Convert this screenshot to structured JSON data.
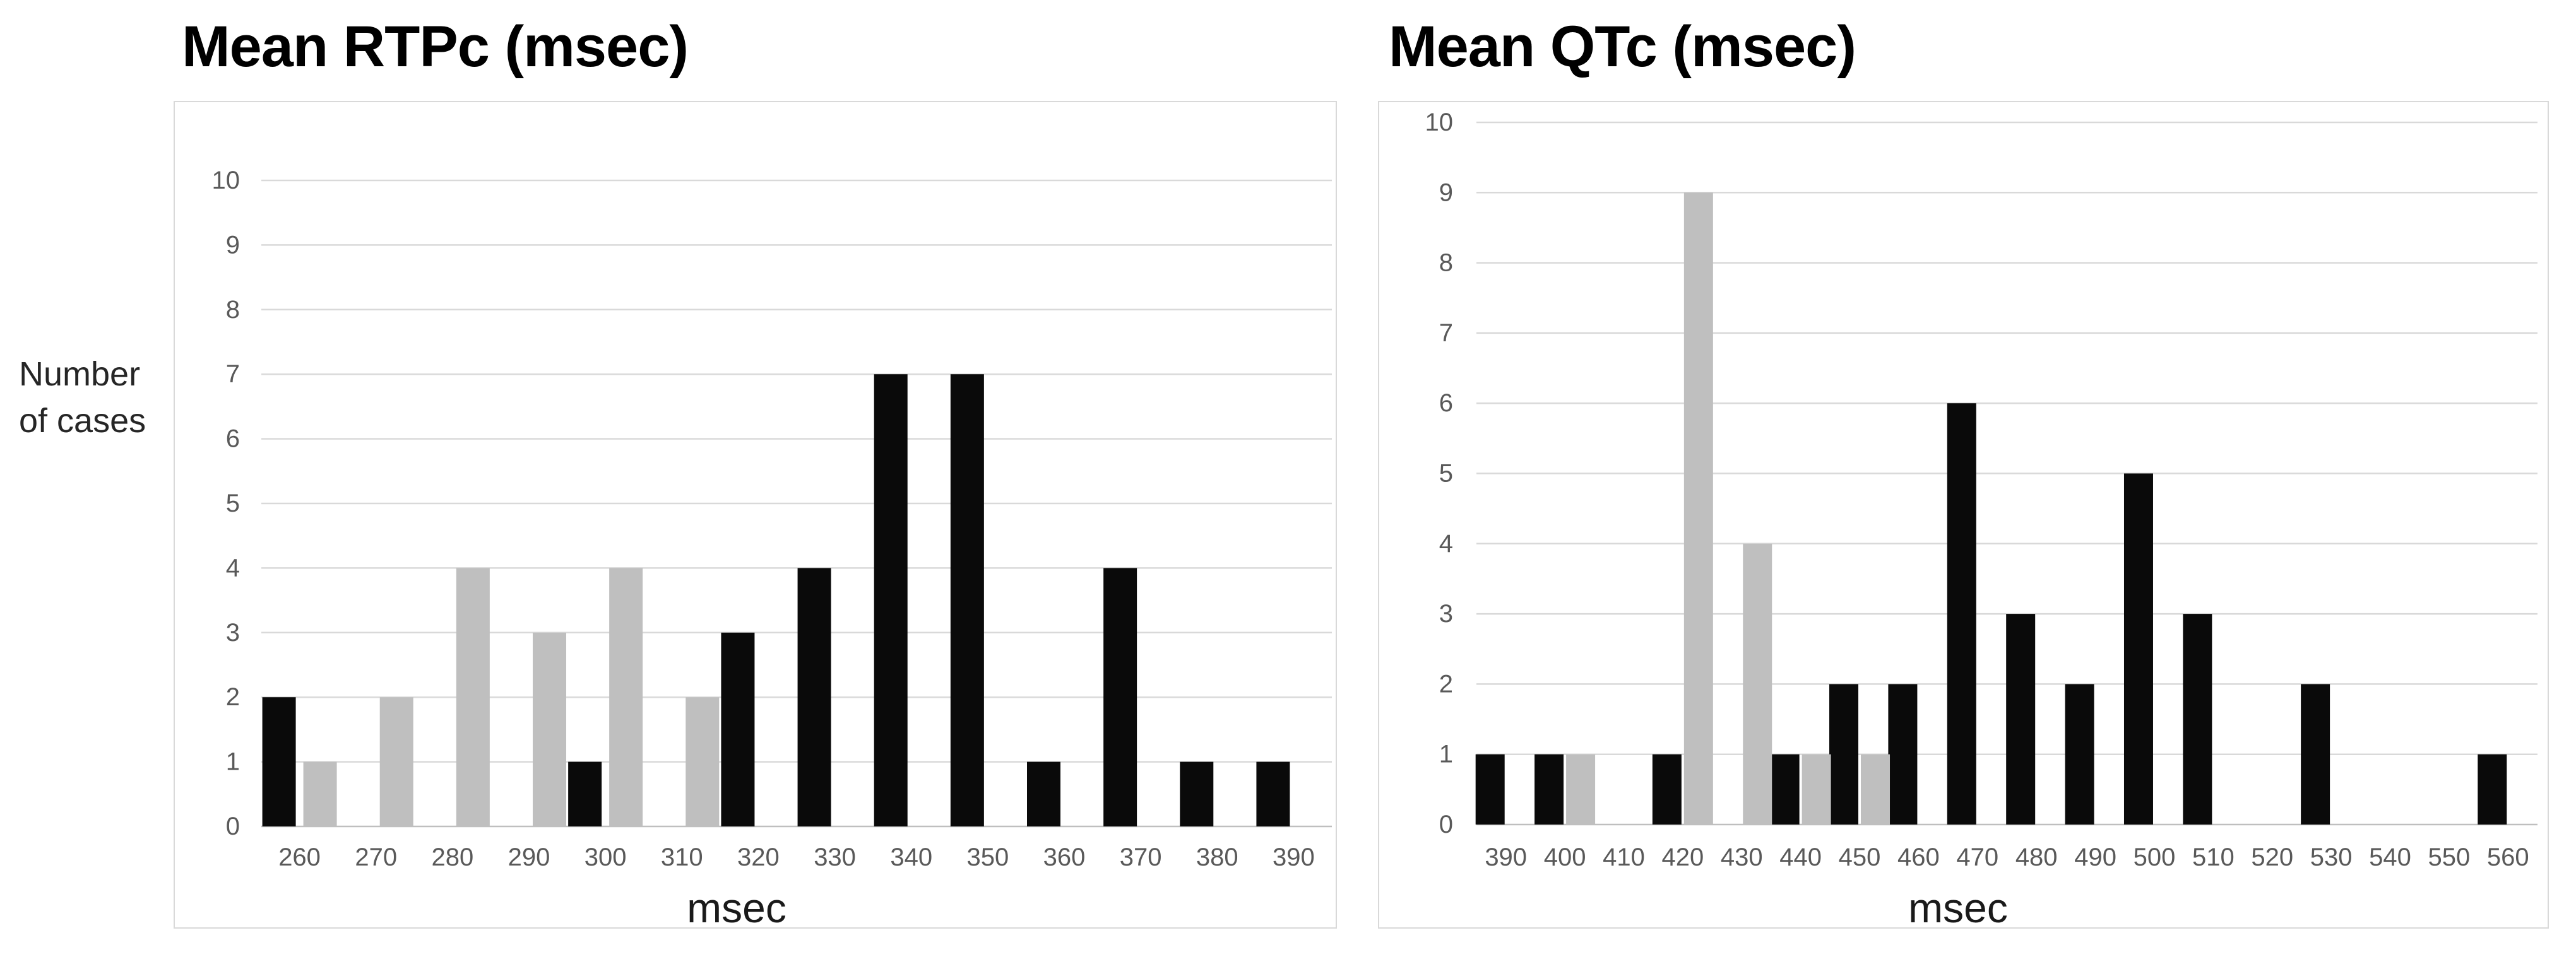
{
  "y_axis_label": {
    "line1": "Number",
    "line2": "of cases"
  },
  "colors": {
    "background": "#ffffff",
    "bar_black": "#0a0a0a",
    "bar_gray": "#bfbfbf",
    "gridline": "#d9d9d9",
    "axis_line": "#bfbfbf",
    "tick_text": "#595959",
    "axis_title_text": "#1a1a1a",
    "title_text": "#000000",
    "box_border": "#d9d9d9"
  },
  "chart_data": [
    {
      "type": "bar",
      "title": "Mean RTPc (msec)",
      "xlabel": "msec",
      "ylabel": "Number of cases",
      "categories": [
        260,
        270,
        280,
        290,
        300,
        310,
        320,
        330,
        340,
        350,
        360,
        370,
        380,
        390
      ],
      "series": [
        {
          "name": "black",
          "color": "#0a0a0a",
          "values": [
            2,
            0,
            0,
            0,
            1,
            0,
            3,
            4,
            7,
            7,
            1,
            4,
            1,
            1
          ]
        },
        {
          "name": "gray",
          "color": "#bfbfbf",
          "values": [
            1,
            2,
            4,
            3,
            4,
            2,
            0,
            0,
            0,
            0,
            0,
            0,
            0,
            0
          ]
        }
      ],
      "ylim": [
        0,
        10
      ],
      "yticks": [
        0,
        1,
        2,
        3,
        4,
        5,
        6,
        7,
        8,
        9,
        10
      ],
      "grid": true,
      "legend": "none"
    },
    {
      "type": "bar",
      "title": "Mean QTc (msec)",
      "xlabel": "msec",
      "ylabel": "",
      "categories": [
        390,
        400,
        410,
        420,
        430,
        440,
        450,
        460,
        470,
        480,
        490,
        500,
        510,
        520,
        530,
        540,
        550,
        560
      ],
      "series": [
        {
          "name": "black",
          "color": "#0a0a0a",
          "values": [
            1,
            1,
            0,
            1,
            0,
            1,
            2,
            2,
            6,
            3,
            2,
            5,
            3,
            0,
            2,
            0,
            0,
            1
          ]
        },
        {
          "name": "gray",
          "color": "#bfbfbf",
          "values": [
            0,
            1,
            0,
            9,
            4,
            1,
            1,
            0,
            0,
            0,
            0,
            0,
            0,
            0,
            0,
            0,
            0,
            0
          ]
        }
      ],
      "ylim": [
        0,
        10
      ],
      "yticks": [
        0,
        1,
        2,
        3,
        4,
        5,
        6,
        7,
        8,
        9,
        10
      ],
      "grid": true,
      "legend": "none"
    }
  ]
}
